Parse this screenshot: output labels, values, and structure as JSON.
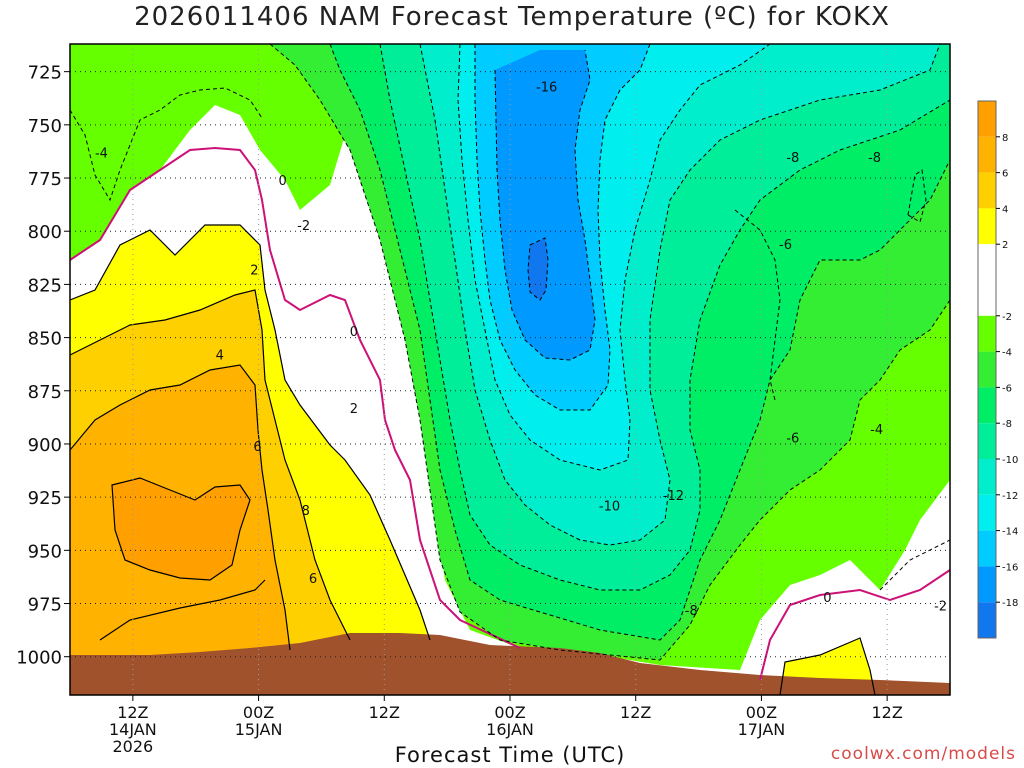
{
  "title": "2026011406 NAM Forecast Temperature (ºC) for KOKX",
  "credit": "coolwx.com/models",
  "chart_data": {
    "type": "heatmap",
    "title": "2026011406 NAM Forecast Temperature (ºC) for KOKX",
    "xlabel": "Forecast Time (UTC)",
    "ylabel": "",
    "y_axis": {
      "ticks": [
        725,
        750,
        775,
        800,
        825,
        850,
        875,
        900,
        925,
        950,
        975,
        1000
      ],
      "ylim": [
        712,
        1018
      ],
      "inverted": true
    },
    "x_axis": {
      "ticks": [
        {
          "hours": 6,
          "lines": [
            "12Z",
            "14JAN",
            "2026"
          ]
        },
        {
          "hours": 18,
          "lines": [
            "00Z",
            "15JAN"
          ]
        },
        {
          "hours": 30,
          "lines": [
            "12Z"
          ]
        },
        {
          "hours": 42,
          "lines": [
            "00Z",
            "16JAN"
          ]
        },
        {
          "hours": 54,
          "lines": [
            "12Z"
          ]
        },
        {
          "hours": 66,
          "lines": [
            "00Z",
            "17JAN"
          ]
        },
        {
          "hours": 78,
          "lines": [
            "12Z"
          ]
        }
      ],
      "xlim": [
        0,
        84
      ]
    },
    "grid": true,
    "colorbar": {
      "ticks": [
        8,
        6,
        4,
        2,
        -2,
        -4,
        -6,
        -8,
        -10,
        -12,
        -14,
        -16,
        -18
      ],
      "bands": [
        {
          "min": 8,
          "max": 10,
          "color": "#ff9f00"
        },
        {
          "min": 6,
          "max": 8,
          "color": "#ffb300"
        },
        {
          "min": 4,
          "max": 6,
          "color": "#ffd000"
        },
        {
          "min": 2,
          "max": 4,
          "color": "#ffff00"
        },
        {
          "min": 0,
          "max": 2,
          "color": "#ffffff"
        },
        {
          "min": -2,
          "max": 0,
          "color": "#ffffff"
        },
        {
          "min": -4,
          "max": -2,
          "color": "#66ff00"
        },
        {
          "min": -6,
          "max": -4,
          "color": "#33ee33"
        },
        {
          "min": -8,
          "max": -6,
          "color": "#00ee66"
        },
        {
          "min": -10,
          "max": -8,
          "color": "#00ee99"
        },
        {
          "min": -12,
          "max": -10,
          "color": "#00eecc"
        },
        {
          "min": -14,
          "max": -12,
          "color": "#00eeee"
        },
        {
          "min": -16,
          "max": -14,
          "color": "#00ccff"
        },
        {
          "min": -18,
          "max": -16,
          "color": "#0099ff"
        },
        {
          "min": -20,
          "max": -18,
          "color": "#1177ee"
        }
      ]
    },
    "ground_color": "#a0522d",
    "freezing_line_color": "#cc1177",
    "contour_labels": [
      {
        "text": "-16",
        "hours": 45.5,
        "p": 732
      },
      {
        "text": "-8",
        "hours": 69,
        "p": 765
      },
      {
        "text": "-8",
        "hours": 76.8,
        "p": 765
      },
      {
        "text": "-6",
        "hours": 68.3,
        "p": 806
      },
      {
        "text": "-6",
        "hours": 69,
        "p": 897
      },
      {
        "text": "-4",
        "hours": 3,
        "p": 763
      },
      {
        "text": "-4",
        "hours": 77,
        "p": 893
      },
      {
        "text": "-2",
        "hours": 22.3,
        "p": 797
      },
      {
        "text": "-2",
        "hours": 83.1,
        "p": 976
      },
      {
        "text": "-10",
        "hours": 51.5,
        "p": 929
      },
      {
        "text": "-12",
        "hours": 57.6,
        "p": 924
      },
      {
        "text": "-8",
        "hours": 59.3,
        "p": 978
      },
      {
        "text": "0",
        "hours": 20.3,
        "p": 776
      },
      {
        "text": "0",
        "hours": 27.1,
        "p": 847
      },
      {
        "text": "0",
        "hours": 72.3,
        "p": 972
      },
      {
        "text": "2",
        "hours": 17.6,
        "p": 818
      },
      {
        "text": "2",
        "hours": 27.1,
        "p": 883
      },
      {
        "text": "4",
        "hours": 14.3,
        "p": 858
      },
      {
        "text": "6",
        "hours": 17.9,
        "p": 901
      },
      {
        "text": "6",
        "hours": 23.2,
        "p": 963
      },
      {
        "text": "8",
        "hours": 22.5,
        "p": 931
      }
    ]
  }
}
